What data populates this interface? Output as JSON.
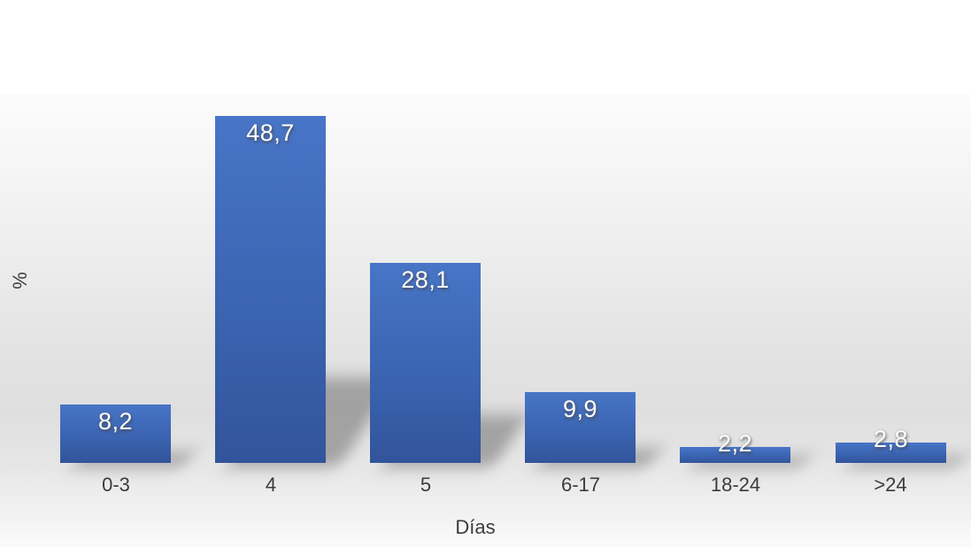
{
  "chart_data": {
    "type": "bar",
    "title": "",
    "xlabel": "Días",
    "ylabel": "%",
    "categories": [
      "0-3",
      "4",
      "5",
      "6-17",
      "18-24",
      ">24"
    ],
    "values": [
      8.2,
      48.7,
      28.1,
      9.9,
      2.2,
      2.8
    ],
    "value_labels": [
      "8,2",
      "48,7",
      "28,1",
      "9,9",
      "2,2",
      "2,8"
    ],
    "decimal_separator": ",",
    "ylim": [
      0,
      52
    ],
    "grid": false,
    "legend": "none",
    "axes_lines_visible": false,
    "data_label_position": "inside-end",
    "colors": {
      "bar_top": "#4875c7",
      "bar_mid": "#3b64b1",
      "bar_bottom": "#32549b",
      "data_label_text": "#ffffff",
      "axis_text": "#3c3c3c",
      "background_light": "#fcfcfc",
      "background_gray": "#dfdfdf"
    }
  }
}
